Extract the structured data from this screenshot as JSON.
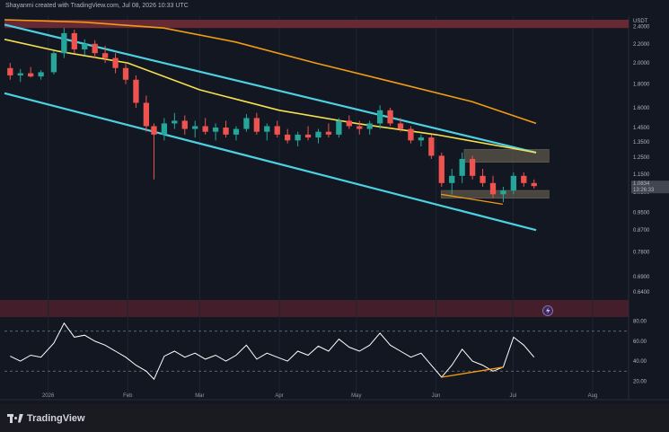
{
  "header": {
    "attribution": "Shayanmi created with TradingView.com, Jul 08, 2026 10:33 UTC"
  },
  "currency": "USDT",
  "footer": {
    "logo_text": "TradingView"
  },
  "price_tag": {
    "value": "1.0834",
    "countdown": "13:26:33"
  },
  "badge": {
    "icon": "lightning-icon"
  },
  "colors": {
    "up": "#26a69a",
    "down": "#ef5350",
    "channel": "#4dd0e1",
    "ma_short": "#f5e050",
    "ma_long": "#f39c12",
    "rsi": "#ffffff",
    "divergence": "#f39c12",
    "supply_zone": "#6b2a36",
    "demand_box": "#5c5549"
  },
  "chart_data": [
    {
      "type": "candlestick",
      "title": "",
      "ylabel": "",
      "yaxis_scale": "log",
      "price_ticks": [
        "2.4000",
        "2.2000",
        "2.0000",
        "1.8000",
        "1.6000",
        "1.4500",
        "1.3500",
        "1.2500",
        "1.1500",
        "1.0500",
        "0.9500",
        "0.8700",
        "0.7800",
        "0.6900",
        "0.6400"
      ],
      "x_ticks": [
        "2026",
        "Feb",
        "Mar",
        "Apr",
        "May",
        "Jun",
        "Jul",
        "Aug"
      ],
      "x_range": [
        "2025-12-15",
        "2026-08-15"
      ],
      "y_range": [
        0.62,
        2.48
      ],
      "grid": true,
      "ohlc": [
        [
          "2025-12-15",
          1.95,
          2.0,
          1.84,
          1.88
        ],
        [
          "2025-12-19",
          1.88,
          1.94,
          1.82,
          1.9
        ],
        [
          "2025-12-23",
          1.9,
          1.96,
          1.86,
          1.87
        ],
        [
          "2025-12-27",
          1.87,
          1.93,
          1.84,
          1.91
        ],
        [
          "2026-01-01",
          1.91,
          2.12,
          1.89,
          2.1
        ],
        [
          "2026-01-05",
          2.1,
          2.38,
          2.05,
          2.32
        ],
        [
          "2026-01-09",
          2.32,
          2.36,
          2.1,
          2.14
        ],
        [
          "2026-01-13",
          2.14,
          2.25,
          2.08,
          2.2
        ],
        [
          "2026-01-17",
          2.2,
          2.24,
          2.05,
          2.1
        ],
        [
          "2026-01-21",
          2.1,
          2.18,
          2.0,
          2.05
        ],
        [
          "2026-01-25",
          2.05,
          2.1,
          1.9,
          1.95
        ],
        [
          "2026-01-29",
          1.95,
          1.99,
          1.8,
          1.84
        ],
        [
          "2026-02-02",
          1.84,
          1.88,
          1.6,
          1.64
        ],
        [
          "2026-02-06",
          1.64,
          1.7,
          1.42,
          1.46
        ],
        [
          "2026-02-09",
          1.46,
          1.48,
          1.12,
          1.4
        ],
        [
          "2026-02-13",
          1.4,
          1.52,
          1.36,
          1.48
        ],
        [
          "2026-02-17",
          1.48,
          1.56,
          1.44,
          1.5
        ],
        [
          "2026-02-21",
          1.5,
          1.54,
          1.4,
          1.44
        ],
        [
          "2026-02-25",
          1.44,
          1.5,
          1.38,
          1.46
        ],
        [
          "2026-03-01",
          1.46,
          1.52,
          1.4,
          1.42
        ],
        [
          "2026-03-05",
          1.42,
          1.48,
          1.36,
          1.45
        ],
        [
          "2026-03-09",
          1.45,
          1.5,
          1.38,
          1.4
        ],
        [
          "2026-03-13",
          1.4,
          1.46,
          1.36,
          1.44
        ],
        [
          "2026-03-17",
          1.44,
          1.55,
          1.42,
          1.52
        ],
        [
          "2026-03-21",
          1.52,
          1.56,
          1.4,
          1.42
        ],
        [
          "2026-03-25",
          1.42,
          1.48,
          1.36,
          1.46
        ],
        [
          "2026-03-29",
          1.46,
          1.5,
          1.38,
          1.4
        ],
        [
          "2026-04-02",
          1.4,
          1.44,
          1.34,
          1.36
        ],
        [
          "2026-04-06",
          1.36,
          1.42,
          1.32,
          1.4
        ],
        [
          "2026-04-10",
          1.4,
          1.46,
          1.36,
          1.38
        ],
        [
          "2026-04-14",
          1.38,
          1.44,
          1.34,
          1.42
        ],
        [
          "2026-04-18",
          1.42,
          1.48,
          1.38,
          1.4
        ],
        [
          "2026-04-22",
          1.4,
          1.52,
          1.38,
          1.5
        ],
        [
          "2026-04-26",
          1.5,
          1.54,
          1.44,
          1.46
        ],
        [
          "2026-04-30",
          1.46,
          1.5,
          1.4,
          1.44
        ],
        [
          "2026-05-04",
          1.44,
          1.5,
          1.4,
          1.48
        ],
        [
          "2026-05-08",
          1.48,
          1.62,
          1.44,
          1.58
        ],
        [
          "2026-05-12",
          1.58,
          1.6,
          1.46,
          1.48
        ],
        [
          "2026-05-16",
          1.48,
          1.52,
          1.42,
          1.44
        ],
        [
          "2026-05-20",
          1.44,
          1.46,
          1.34,
          1.36
        ],
        [
          "2026-05-24",
          1.36,
          1.4,
          1.32,
          1.38
        ],
        [
          "2026-05-28",
          1.38,
          1.4,
          1.24,
          1.26
        ],
        [
          "2026-06-01",
          1.26,
          1.28,
          1.08,
          1.1
        ],
        [
          "2026-06-05",
          1.1,
          1.18,
          1.04,
          1.14
        ],
        [
          "2026-06-09",
          1.14,
          1.28,
          1.1,
          1.24
        ],
        [
          "2026-06-13",
          1.24,
          1.26,
          1.12,
          1.14
        ],
        [
          "2026-06-17",
          1.14,
          1.18,
          1.08,
          1.1
        ],
        [
          "2026-06-21",
          1.1,
          1.14,
          1.02,
          1.04
        ],
        [
          "2026-06-25",
          1.04,
          1.08,
          1.0,
          1.06
        ],
        [
          "2026-06-29",
          1.06,
          1.16,
          1.04,
          1.14
        ],
        [
          "2026-07-03",
          1.14,
          1.16,
          1.08,
          1.1
        ],
        [
          "2026-07-07",
          1.1,
          1.12,
          1.07,
          1.0834
        ]
      ],
      "indicators": [
        {
          "kind": "moving_average",
          "color": "#f5e050",
          "points": [
            [
              "2025-12-15",
              2.25
            ],
            [
              "2026-01-05",
              2.12
            ],
            [
              "2026-02-01",
              2.0
            ],
            [
              "2026-03-01",
              1.75
            ],
            [
              "2026-04-01",
              1.58
            ],
            [
              "2026-05-01",
              1.48
            ],
            [
              "2026-06-01",
              1.4
            ],
            [
              "2026-07-10",
              1.28
            ]
          ]
        },
        {
          "kind": "moving_average",
          "color": "#f39c12",
          "points": [
            [
              "2025-12-15",
              2.48
            ],
            [
              "2026-01-15",
              2.45
            ],
            [
              "2026-02-15",
              2.38
            ],
            [
              "2026-03-15",
              2.22
            ],
            [
              "2026-04-15",
              2.0
            ],
            [
              "2026-05-15",
              1.82
            ],
            [
              "2026-06-15",
              1.65
            ],
            [
              "2026-07-10",
              1.48
            ]
          ]
        }
      ],
      "channel": {
        "upper": [
          [
            "2025-12-15",
            2.42
          ],
          [
            "2026-07-10",
            1.28
          ]
        ],
        "lower": [
          [
            "2025-12-15",
            1.72
          ],
          [
            "2026-07-10",
            0.87
          ]
        ]
      },
      "zones": [
        {
          "kind": "supply",
          "from": "2025-12-15",
          "to": "2026-08-15",
          "low": 2.38,
          "high": 2.48
        },
        {
          "kind": "resistance",
          "from": "2026-06-12",
          "to": "2026-07-15",
          "low": 1.22,
          "high": 1.3
        },
        {
          "kind": "support",
          "from": "2026-06-03",
          "to": "2026-07-15",
          "low": 1.02,
          "high": 1.06
        }
      ]
    },
    {
      "type": "line",
      "title": "",
      "ylabel": "",
      "y_ticks": [
        "80.00",
        "60.00",
        "40.00",
        "20.00"
      ],
      "y_range": [
        15,
        85
      ],
      "levels": [
        70,
        30
      ],
      "series": [
        {
          "points": [
            [
              "2025-12-15",
              45
            ],
            [
              "2025-12-19",
              40
            ],
            [
              "2025-12-23",
              46
            ],
            [
              "2025-12-27",
              44
            ],
            [
              "2026-01-01",
              58
            ],
            [
              "2026-01-05",
              78
            ],
            [
              "2026-01-09",
              64
            ],
            [
              "2026-01-13",
              66
            ],
            [
              "2026-01-17",
              60
            ],
            [
              "2026-01-21",
              56
            ],
            [
              "2026-01-25",
              50
            ],
            [
              "2026-01-29",
              44
            ],
            [
              "2026-02-02",
              36
            ],
            [
              "2026-02-06",
              30
            ],
            [
              "2026-02-09",
              22
            ],
            [
              "2026-02-13",
              45
            ],
            [
              "2026-02-17",
              50
            ],
            [
              "2026-02-21",
              44
            ],
            [
              "2026-02-25",
              48
            ],
            [
              "2026-03-01",
              42
            ],
            [
              "2026-03-05",
              46
            ],
            [
              "2026-03-09",
              40
            ],
            [
              "2026-03-13",
              46
            ],
            [
              "2026-03-17",
              56
            ],
            [
              "2026-03-21",
              42
            ],
            [
              "2026-03-25",
              48
            ],
            [
              "2026-03-29",
              44
            ],
            [
              "2026-04-02",
              40
            ],
            [
              "2026-04-06",
              50
            ],
            [
              "2026-04-10",
              46
            ],
            [
              "2026-04-14",
              55
            ],
            [
              "2026-04-18",
              50
            ],
            [
              "2026-04-22",
              62
            ],
            [
              "2026-04-26",
              54
            ],
            [
              "2026-04-30",
              50
            ],
            [
              "2026-05-04",
              56
            ],
            [
              "2026-05-08",
              68
            ],
            [
              "2026-05-12",
              56
            ],
            [
              "2026-05-16",
              50
            ],
            [
              "2026-05-20",
              44
            ],
            [
              "2026-05-24",
              48
            ],
            [
              "2026-05-28",
              36
            ],
            [
              "2026-06-01",
              24
            ],
            [
              "2026-06-05",
              36
            ],
            [
              "2026-06-09",
              52
            ],
            [
              "2026-06-13",
              40
            ],
            [
              "2026-06-17",
              36
            ],
            [
              "2026-06-21",
              30
            ],
            [
              "2026-06-25",
              34
            ],
            [
              "2026-06-29",
              64
            ],
            [
              "2026-07-03",
              56
            ],
            [
              "2026-07-07",
              44
            ]
          ]
        }
      ],
      "divergence_line": [
        [
          "2026-06-01",
          24
        ],
        [
          "2026-06-25",
          34
        ]
      ]
    }
  ]
}
